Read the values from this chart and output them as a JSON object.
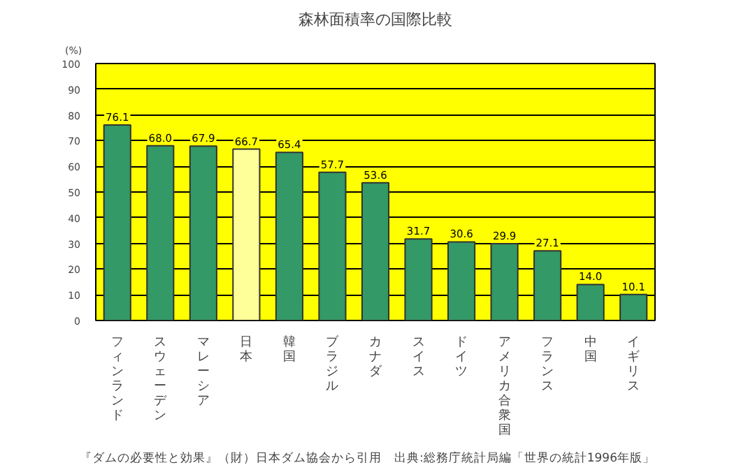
{
  "chart_data": {
    "type": "bar",
    "title": "森林面積率の国際比較",
    "ylabel": "(%)",
    "categories": [
      "フィンランド",
      "スウェーデン",
      "マレーシア",
      "日本",
      "韓国",
      "ブラジル",
      "カナダ",
      "スイス",
      "ドイツ",
      "アメリカ合衆国",
      "フランス",
      "中国",
      "イギリス"
    ],
    "values": [
      76.1,
      68.0,
      67.9,
      66.7,
      65.4,
      57.7,
      53.6,
      31.7,
      30.6,
      29.9,
      27.1,
      14.0,
      10.1
    ],
    "value_labels": [
      "76.1",
      "68.0",
      "67.9",
      "66.7",
      "65.4",
      "57.7",
      "53.6",
      "31.7",
      "30.6",
      "29.9",
      "27.1",
      "14.0",
      "10.1"
    ],
    "colors": [
      "#339966",
      "#339966",
      "#339966",
      "#ffff99",
      "#339966",
      "#339966",
      "#339966",
      "#339966",
      "#339966",
      "#339966",
      "#339966",
      "#339966",
      "#339966"
    ],
    "ylim": [
      0,
      100
    ],
    "yticks": [
      0,
      10,
      20,
      30,
      40,
      50,
      60,
      70,
      80,
      90,
      100
    ],
    "grid": "y",
    "annotations": [
      "『ダムの必要性と効果』（財）日本ダム協会から引用　出典:総務庁統計局編「世界の統計1996年版」"
    ]
  }
}
